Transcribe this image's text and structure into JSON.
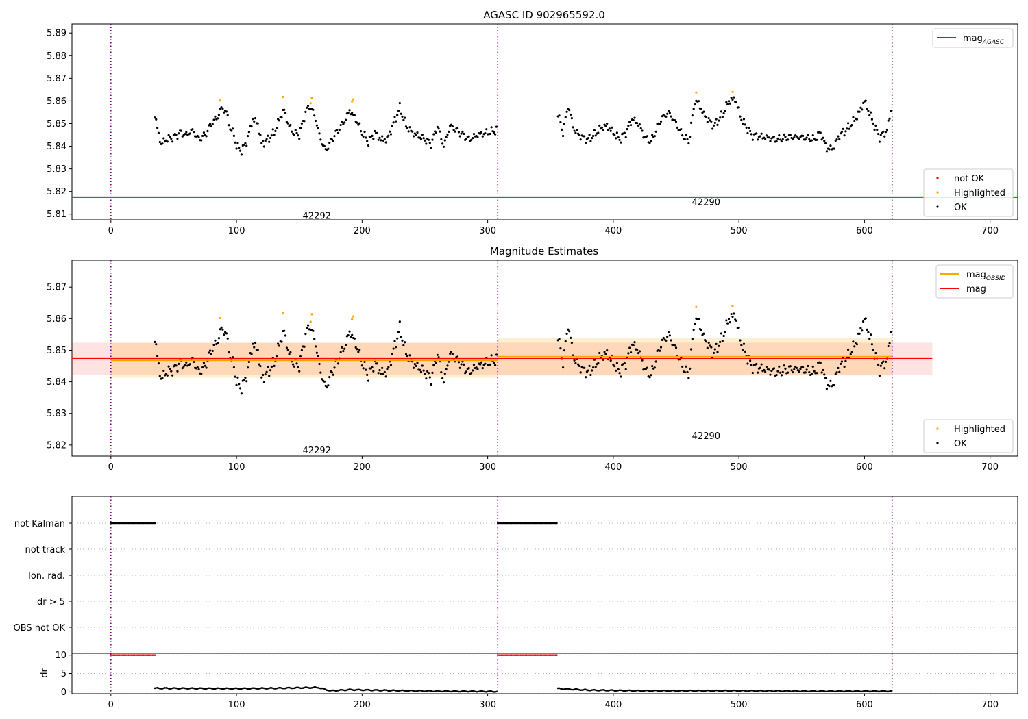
{
  "figure": {
    "title": "AGASC ID 902965592.0",
    "colors": {
      "ok": "#000000",
      "highlighted": "#ffa500",
      "not_ok": "#ff0000",
      "agasc": "#008000",
      "obsid": "#ffa500",
      "mag": "#ff0000",
      "separator": "#800080"
    }
  },
  "chart_data": [
    {
      "type": "scatter",
      "title": "AGASC ID 902965592.0",
      "xlim": [
        -31,
        722
      ],
      "ylim": [
        5.8075,
        5.894
      ],
      "x_ticks": [
        0,
        100,
        200,
        300,
        400,
        500,
        600,
        700
      ],
      "y_ticks": [
        5.81,
        5.82,
        5.83,
        5.84,
        5.85,
        5.86,
        5.87,
        5.88,
        5.89
      ],
      "y_tick_labels": [
        "5.81",
        "5.82",
        "5.83",
        "5.84",
        "5.85",
        "5.86",
        "5.87",
        "5.88",
        "5.89"
      ],
      "obsid_separators": [
        0,
        308,
        622
      ],
      "obsid_labels": [
        {
          "text": "42292",
          "x": 153,
          "y": 5.8095
        },
        {
          "text": "42290",
          "x": 463,
          "y": 5.8155
        }
      ],
      "lines": [
        {
          "name": "mag_AGASC",
          "y": 5.8175
        }
      ],
      "series": [
        {
          "name": "not OK",
          "points": []
        },
        {
          "name": "Highlighted",
          "points": [
            [
              87,
              5.8602
            ],
            [
              137,
              5.8618
            ],
            [
              159,
              5.859
            ],
            [
              160,
              5.8614
            ],
            [
              192,
              5.8598
            ],
            [
              193,
              5.8607
            ],
            [
              466,
              5.8637
            ],
            [
              495,
              5.864
            ]
          ]
        },
        {
          "name": "OK",
          "segments": [
            {
              "x_start": 35,
              "x_end": 307,
              "step": 1,
              "anchors": [
                [
                  35,
                  5.854
                ],
                [
                  38,
                  5.845
                ],
                [
                  40,
                  5.841
                ],
                [
                  44,
                  5.843
                ],
                [
                  50,
                  5.844
                ],
                [
                  55,
                  5.846
                ],
                [
                  60,
                  5.845
                ],
                [
                  65,
                  5.847
                ],
                [
                  70,
                  5.843
                ],
                [
                  75,
                  5.845
                ],
                [
                  80,
                  5.85
                ],
                [
                  85,
                  5.853
                ],
                [
                  88,
                  5.857
                ],
                [
                  92,
                  5.855
                ],
                [
                  95,
                  5.848
                ],
                [
                  98,
                  5.845
                ],
                [
                  100,
                  5.84
                ],
                [
                  104,
                  5.838
                ],
                [
                  108,
                  5.842
                ],
                [
                  113,
                  5.852
                ],
                [
                  117,
                  5.85
                ],
                [
                  120,
                  5.841
                ],
                [
                  125,
                  5.843
                ],
                [
                  130,
                  5.846
                ],
                [
                  135,
                  5.853
                ],
                [
                  138,
                  5.856
                ],
                [
                  141,
                  5.85
                ],
                [
                  145,
                  5.846
                ],
                [
                  150,
                  5.845
                ],
                [
                  155,
                  5.855
                ],
                [
                  158,
                  5.858
                ],
                [
                  162,
                  5.854
                ],
                [
                  167,
                  5.843
                ],
                [
                  171,
                  5.838
                ],
                [
                  176,
                  5.843
                ],
                [
                  182,
                  5.848
                ],
                [
                  187,
                  5.852
                ],
                [
                  190,
                  5.856
                ],
                [
                  195,
                  5.852
                ],
                [
                  200,
                  5.846
                ],
                [
                  205,
                  5.842
                ],
                [
                  210,
                  5.846
                ],
                [
                  215,
                  5.843
                ],
                [
                  220,
                  5.843
                ],
                [
                  225,
                  5.85
                ],
                [
                  230,
                  5.857
                ],
                [
                  235,
                  5.849
                ],
                [
                  240,
                  5.846
                ],
                [
                  250,
                  5.843
                ],
                [
                  255,
                  5.841
                ],
                [
                  260,
                  5.849
                ],
                [
                  265,
                  5.84
                ],
                [
                  270,
                  5.849
                ],
                [
                  278,
                  5.846
                ],
                [
                  285,
                  5.843
                ],
                [
                  292,
                  5.845
                ],
                [
                  300,
                  5.846
                ],
                [
                  307,
                  5.847
                ]
              ]
            },
            {
              "x_start": 356,
              "x_end": 621,
              "step": 1,
              "anchors": [
                [
                  356,
                  5.854
                ],
                [
                  360,
                  5.846
                ],
                [
                  364,
                  5.858
                ],
                [
                  369,
                  5.847
                ],
                [
                  375,
                  5.844
                ],
                [
                  380,
                  5.843
                ],
                [
                  385,
                  5.845
                ],
                [
                  390,
                  5.848
                ],
                [
                  395,
                  5.849
                ],
                [
                  400,
                  5.846
                ],
                [
                  405,
                  5.843
                ],
                [
                  410,
                  5.846
                ],
                [
                  415,
                  5.852
                ],
                [
                  420,
                  5.85
                ],
                [
                  425,
                  5.844
                ],
                [
                  430,
                  5.842
                ],
                [
                  438,
                  5.852
                ],
                [
                  444,
                  5.855
                ],
                [
                  450,
                  5.85
                ],
                [
                  455,
                  5.845
                ],
                [
                  460,
                  5.842
                ],
                [
                  465,
                  5.86
                ],
                [
                  468,
                  5.859
                ],
                [
                  472,
                  5.854
                ],
                [
                  480,
                  5.849
                ],
                [
                  487,
                  5.854
                ],
                [
                  492,
                  5.86
                ],
                [
                  497,
                  5.861
                ],
                [
                  502,
                  5.852
                ],
                [
                  510,
                  5.845
                ],
                [
                  520,
                  5.844
                ],
                [
                  530,
                  5.843
                ],
                [
                  540,
                  5.844
                ],
                [
                  550,
                  5.844
                ],
                [
                  560,
                  5.843
                ],
                [
                  565,
                  5.846
                ],
                [
                  570,
                  5.839
                ],
                [
                  575,
                  5.839
                ],
                [
                  580,
                  5.845
                ],
                [
                  585,
                  5.847
                ],
                [
                  590,
                  5.85
                ],
                [
                  595,
                  5.854
                ],
                [
                  600,
                  5.86
                ],
                [
                  603,
                  5.856
                ],
                [
                  608,
                  5.849
                ],
                [
                  612,
                  5.844
                ],
                [
                  618,
                  5.847
                ],
                [
                  621,
                  5.856
                ]
              ]
            }
          ]
        }
      ],
      "legends": [
        {
          "position": "top-right",
          "entries": [
            {
              "label_base": "mag",
              "label_sub": "AGASC",
              "kind": "line",
              "color": "#008000"
            }
          ]
        },
        {
          "position": "bottom-right",
          "entries": [
            {
              "label_base": "not OK",
              "kind": "point",
              "color": "#ff0000"
            },
            {
              "label_base": "Highlighted",
              "kind": "point",
              "color": "#ffa500"
            },
            {
              "label_base": "OK",
              "kind": "point",
              "color": "#000000"
            }
          ]
        }
      ]
    },
    {
      "type": "scatter",
      "title": "Magnitude Estimates",
      "xlim": [
        -31,
        722
      ],
      "ylim": [
        5.8165,
        5.8785
      ],
      "x_ticks": [
        0,
        100,
        200,
        300,
        400,
        500,
        600,
        700
      ],
      "y_ticks": [
        5.82,
        5.83,
        5.84,
        5.85,
        5.86,
        5.87
      ],
      "y_tick_labels": [
        "5.82",
        "5.83",
        "5.84",
        "5.85",
        "5.86",
        "5.87"
      ],
      "obsid_separators": [
        0,
        308,
        622
      ],
      "obsid_labels": [
        {
          "text": "42292",
          "x": 153,
          "y": 5.8185
        },
        {
          "text": "42290",
          "x": 463,
          "y": 5.823
        }
      ],
      "mag": {
        "value": 5.8473,
        "band": [
          5.8422,
          5.8524
        ],
        "x_range": [
          -31,
          654
        ]
      },
      "obsid_mag": [
        {
          "obsid": "42292",
          "value": 5.8468,
          "band": [
            5.8413,
            5.8523
          ],
          "x_range": [
            0,
            308
          ]
        },
        {
          "obsid": "42290",
          "value": 5.848,
          "band": [
            5.842,
            5.854
          ],
          "x_range": [
            308,
            622
          ]
        }
      ],
      "series": [
        {
          "name": "Highlighted"
        },
        {
          "name": "OK"
        }
      ],
      "legends": [
        {
          "position": "top-right",
          "entries": [
            {
              "label_base": "mag",
              "label_sub": "OBSID",
              "kind": "line",
              "color": "#ffa500"
            },
            {
              "label_base": "mag",
              "kind": "line",
              "color": "#ff0000"
            }
          ]
        },
        {
          "position": "bottom-right",
          "entries": [
            {
              "label_base": "Highlighted",
              "kind": "point",
              "color": "#ffa500"
            },
            {
              "label_base": "OK",
              "kind": "point",
              "color": "#000000"
            }
          ]
        }
      ]
    },
    {
      "type": "scatter",
      "title": "",
      "xlim": [
        -31,
        722
      ],
      "categories": [
        "not Kalman",
        "not track",
        "Ion. rad.",
        "dr > 5",
        "OBS not OK"
      ],
      "flag_segments": [
        {
          "category": "not Kalman",
          "x_start": 0,
          "x_end": 35
        },
        {
          "category": "not Kalman",
          "x_start": 308,
          "x_end": 355
        }
      ],
      "obsid_separators": [
        0,
        308,
        622
      ]
    },
    {
      "type": "scatter",
      "title": "",
      "xlim": [
        -31,
        722
      ],
      "ylabel": "dr",
      "ylim": [
        -0.5,
        10.5
      ],
      "y_ticks": [
        0,
        5,
        10
      ],
      "y_tick_labels": [
        "0",
        "5",
        "10"
      ],
      "x_ticks": [
        0,
        100,
        200,
        300,
        400,
        500,
        600,
        700
      ],
      "x_tick_labels": [
        "0",
        "100",
        "200",
        "300",
        "400",
        "500",
        "600",
        "700"
      ],
      "obsid_separators": [
        0,
        308,
        622
      ],
      "series": [
        {
          "name": "dr capped",
          "color": "#ff0000",
          "segments": [
            {
              "x_start": 0,
              "x_end": 35,
              "y": 10
            },
            {
              "x_start": 308,
              "x_end": 355,
              "y": 10
            }
          ]
        },
        {
          "name": "dr",
          "color": "#000000",
          "segments": [
            {
              "x_start": 35,
              "x_end": 307,
              "anchors": [
                [
                  35,
                  1.0
                ],
                [
                  100,
                  0.9
                ],
                [
                  130,
                  1.0
                ],
                [
                  165,
                  1.2
                ],
                [
                  175,
                  0.3
                ],
                [
                  190,
                  0.6
                ],
                [
                  220,
                  0.4
                ],
                [
                  260,
                  0.2
                ],
                [
                  307,
                  0.1
                ]
              ]
            },
            {
              "x_start": 356,
              "x_end": 621,
              "anchors": [
                [
                  356,
                  0.9
                ],
                [
                  380,
                  0.5
                ],
                [
                  420,
                  0.3
                ],
                [
                  500,
                  0.3
                ],
                [
                  560,
                  0.2
                ],
                [
                  621,
                  0.2
                ]
              ]
            }
          ]
        }
      ]
    }
  ]
}
